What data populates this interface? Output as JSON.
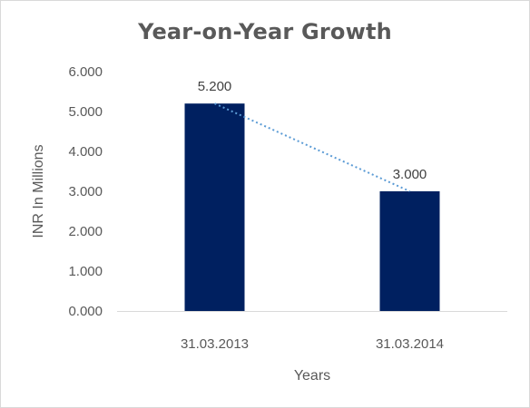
{
  "chart_data": {
    "type": "bar",
    "title": "Year-on-Year Growth",
    "xlabel": "Years",
    "ylabel": "INR In Millions",
    "categories": [
      "31.03.2013",
      "31.03.2014"
    ],
    "series": [
      {
        "values": [
          5.2,
          3.0
        ],
        "data_labels": [
          "5.200",
          "3.000"
        ],
        "color": "#002060"
      }
    ],
    "trendline": {
      "type": "linear",
      "style": "dotted",
      "color": "#5b9bd5"
    },
    "ylim": [
      0,
      6
    ],
    "yticks": [
      "0.000",
      "1.000",
      "2.000",
      "3.000",
      "4.000",
      "5.000",
      "6.000"
    ],
    "grid": false,
    "legend": "none"
  }
}
